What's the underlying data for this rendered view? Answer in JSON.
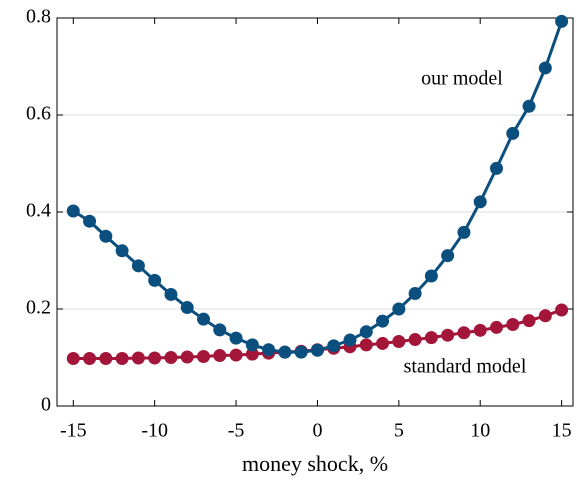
{
  "chart_data": {
    "type": "line",
    "xlabel": "money shock, %",
    "x": [
      -15,
      -14,
      -13,
      -12,
      -11,
      -10,
      -9,
      -8,
      -7,
      -6,
      -5,
      -4,
      -3,
      -2,
      -1,
      0,
      1,
      2,
      3,
      4,
      5,
      6,
      7,
      8,
      9,
      10,
      11,
      12,
      13,
      14,
      15
    ],
    "series": [
      {
        "name": "our model",
        "color": "#0b4f7e",
        "values": [
          0.402,
          0.381,
          0.35,
          0.32,
          0.289,
          0.259,
          0.23,
          0.203,
          0.179,
          0.157,
          0.14,
          0.126,
          0.116,
          0.111,
          0.111,
          0.115,
          0.124,
          0.136,
          0.153,
          0.175,
          0.2,
          0.232,
          0.268,
          0.31,
          0.358,
          0.421,
          0.49,
          0.562,
          0.618,
          0.697,
          0.793
        ]
      },
      {
        "name": "standard model",
        "color": "#a3163a",
        "values": [
          0.098,
          0.098,
          0.098,
          0.098,
          0.099,
          0.099,
          0.1,
          0.101,
          0.102,
          0.104,
          0.105,
          0.107,
          0.109,
          0.111,
          0.113,
          0.116,
          0.119,
          0.122,
          0.126,
          0.129,
          0.133,
          0.137,
          0.141,
          0.146,
          0.151,
          0.156,
          0.162,
          0.168,
          0.176,
          0.186,
          0.198
        ]
      }
    ],
    "xlim": [
      -16,
      15.7
    ],
    "xticks": [
      -15,
      -10,
      -5,
      0,
      5,
      10,
      15
    ],
    "ylim": [
      0,
      0.8
    ],
    "yticks": [
      0,
      0.2,
      0.4,
      0.6,
      0.8
    ],
    "grid": true
  }
}
